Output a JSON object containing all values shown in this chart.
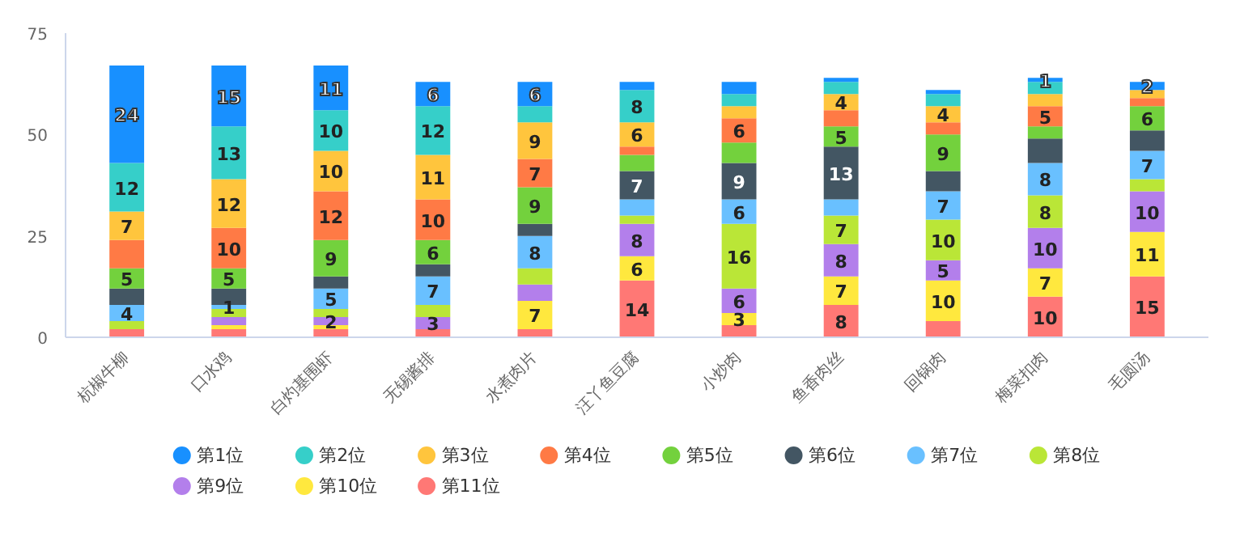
{
  "chart_data": {
    "type": "bar",
    "stacked": true,
    "categories": [
      "杭椒牛柳",
      "口水鸡",
      "白灼基围虾",
      "无锡酱排",
      "水煮肉片",
      "汪丫鱼豆腐",
      "小炒肉",
      "鱼香肉丝",
      "回锅肉",
      "梅菜扣肉",
      "毛圆汤"
    ],
    "ylim": [
      0,
      75
    ],
    "yticks": [
      0,
      25,
      50,
      75
    ],
    "grid": false,
    "legend": "bottom",
    "series": [
      {
        "name": "第11位",
        "color": "#ff7875",
        "values": [
          2,
          2,
          2,
          2,
          2,
          14,
          3,
          8,
          4,
          10,
          15
        ],
        "value_labels": [
          null,
          null,
          null,
          null,
          null,
          "14",
          null,
          "8",
          null,
          "10",
          "15"
        ]
      },
      {
        "name": "第10位",
        "color": "#ffe83e",
        "values": [
          0,
          1,
          1,
          0,
          7,
          6,
          3,
          7,
          10,
          7,
          11
        ],
        "value_labels": [
          null,
          null,
          null,
          null,
          "7",
          "6",
          "3",
          "7",
          "10",
          "7",
          "11"
        ]
      },
      {
        "name": "第9位",
        "color": "#b37feb",
        "values": [
          0,
          2,
          2,
          3,
          4,
          8,
          6,
          8,
          5,
          10,
          10
        ],
        "value_labels": [
          null,
          null,
          "2",
          "3",
          null,
          "8",
          "6",
          "8",
          "5",
          "10",
          "10"
        ]
      },
      {
        "name": "第8位",
        "color": "#bae637",
        "values": [
          2,
          2,
          2,
          3,
          4,
          2,
          16,
          7,
          10,
          8,
          3
        ],
        "value_labels": [
          null,
          null,
          null,
          null,
          null,
          null,
          "16",
          "7",
          "10",
          "8",
          null
        ]
      },
      {
        "name": "第7位",
        "color": "#69c0ff",
        "values": [
          4,
          1,
          5,
          7,
          8,
          4,
          6,
          4,
          7,
          8,
          7
        ],
        "value_labels": [
          "4",
          "1",
          "5",
          "7",
          "8",
          null,
          "6",
          null,
          "7",
          "8",
          "7"
        ]
      },
      {
        "name": "第6位",
        "color": "#435663",
        "values": [
          4,
          4,
          3,
          3,
          3,
          7,
          9,
          13,
          5,
          6,
          5
        ],
        "value_labels": [
          null,
          null,
          null,
          null,
          null,
          "7",
          "9",
          "13",
          null,
          null,
          null
        ]
      },
      {
        "name": "第5位",
        "color": "#73d13d",
        "values": [
          5,
          5,
          9,
          6,
          9,
          4,
          5,
          5,
          9,
          3,
          6
        ],
        "value_labels": [
          "5",
          "5",
          "9",
          "6",
          "9",
          null,
          null,
          "5",
          "9",
          null,
          "6"
        ]
      },
      {
        "name": "第4位",
        "color": "#ff7a45",
        "values": [
          7,
          10,
          12,
          10,
          7,
          2,
          6,
          4,
          3,
          5,
          2
        ],
        "value_labels": [
          null,
          "10",
          "12",
          "10",
          "7",
          null,
          "6",
          null,
          null,
          "5",
          null
        ]
      },
      {
        "name": "第3位",
        "color": "#ffc53d",
        "values": [
          7,
          12,
          10,
          11,
          9,
          6,
          3,
          4,
          4,
          3,
          2
        ],
        "value_labels": [
          "7",
          "12",
          "10",
          "11",
          "9",
          "6",
          null,
          "4",
          "4",
          null,
          null
        ]
      },
      {
        "name": "第2位",
        "color": "#36cfc9",
        "values": [
          12,
          13,
          10,
          12,
          4,
          8,
          3,
          3,
          3,
          3,
          0
        ],
        "value_labels": [
          "12",
          "13",
          "10",
          "12",
          null,
          "8",
          null,
          null,
          null,
          null,
          null
        ]
      },
      {
        "name": "第1位",
        "color": "#1890ff",
        "values": [
          24,
          15,
          11,
          6,
          6,
          2,
          3,
          1,
          1,
          1,
          2
        ],
        "value_labels": [
          "24",
          "15",
          "11",
          "6",
          "6",
          null,
          null,
          null,
          null,
          "1",
          "2"
        ]
      }
    ]
  }
}
